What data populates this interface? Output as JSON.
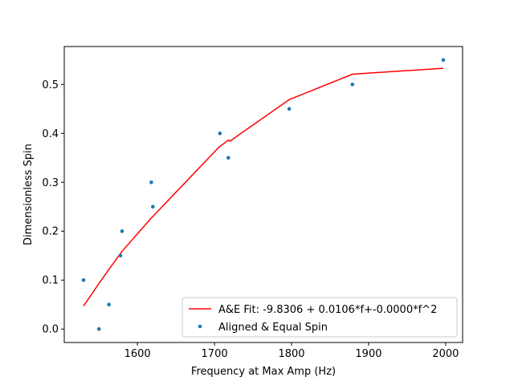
{
  "chart_data": {
    "type": "scatter",
    "xlabel": "Frequency at Max Amp (Hz)",
    "ylabel": "Dimensionless Spin",
    "xlim": [
      1505,
      2022
    ],
    "ylim": [
      -0.0275,
      0.5775
    ],
    "xticks": [
      1600,
      1700,
      1800,
      1900,
      2000
    ],
    "yticks": [
      0.0,
      0.1,
      0.2,
      0.3,
      0.4,
      0.5
    ],
    "xtick_labels": [
      "1600",
      "1700",
      "1800",
      "1900",
      "2000"
    ],
    "ytick_labels": [
      "0.0",
      "0.1",
      "0.2",
      "0.3",
      "0.4",
      "0.5"
    ],
    "grid": false,
    "legend_position": "lower right",
    "series": [
      {
        "name": "A&E Fit: -9.8306 + 0.0106*f+-0.0000*f^2",
        "kind": "line",
        "color": "#ff0000",
        "x": [
          1530,
          1550,
          1563,
          1580,
          1618,
          1620,
          1706,
          1718,
          1720,
          1797,
          1879,
          1997
        ],
        "y": [
          0.047,
          0.093,
          0.122,
          0.159,
          0.227,
          0.23,
          0.372,
          0.386,
          0.384,
          0.469,
          0.521,
          0.533
        ]
      },
      {
        "name": "Aligned & Equal Spin",
        "kind": "scatter",
        "color": "#1f77b4",
        "x": [
          1530,
          1550,
          1563,
          1578,
          1580,
          1618,
          1620,
          1707,
          1718,
          1797,
          1879,
          1997
        ],
        "y": [
          0.1,
          0.0,
          0.05,
          0.15,
          0.2,
          0.3,
          0.25,
          0.4,
          0.35,
          0.45,
          0.5,
          0.55
        ]
      }
    ]
  }
}
